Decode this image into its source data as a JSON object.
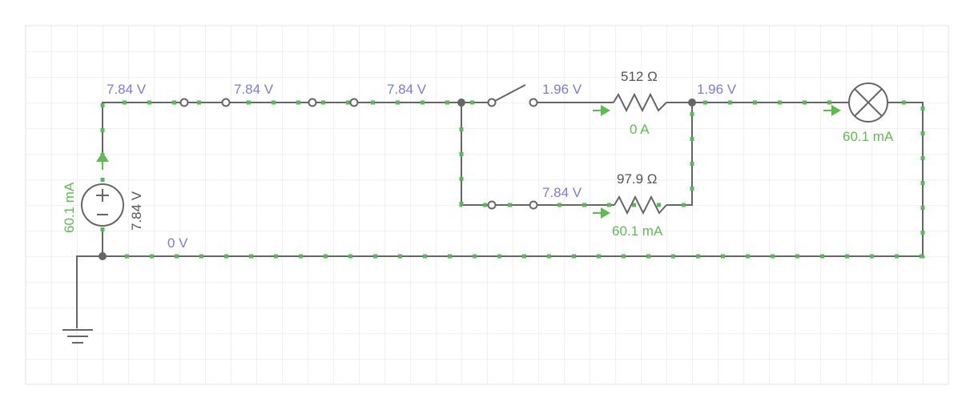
{
  "colors": {
    "voltage": "#7b7bdc",
    "current": "#5dbb50",
    "wire": "#666666",
    "grid": "#e6e6e6"
  },
  "labels": {
    "v_top1": "7.84 V",
    "v_top2": "7.84 V",
    "v_top3": "7.84 V",
    "v_after_switch": "1.96 V",
    "v_lamp_node": "1.96 V",
    "v_bottom_branch": "7.84 V",
    "v_ground": "0 V",
    "r_top": "512 Ω",
    "r_bottom": "97.9 Ω",
    "i_r_top": "0 A",
    "i_lamp": "60.1 mA",
    "i_r_bottom": "60.1 mA",
    "i_source": "60.1 mA",
    "v_source": "7.84 V"
  },
  "icons": {
    "source": "dc-voltage-source-icon",
    "lamp": "lamp-icon",
    "ground": "ground-icon",
    "switch": "switch-icon",
    "resistor": "resistor-icon"
  }
}
